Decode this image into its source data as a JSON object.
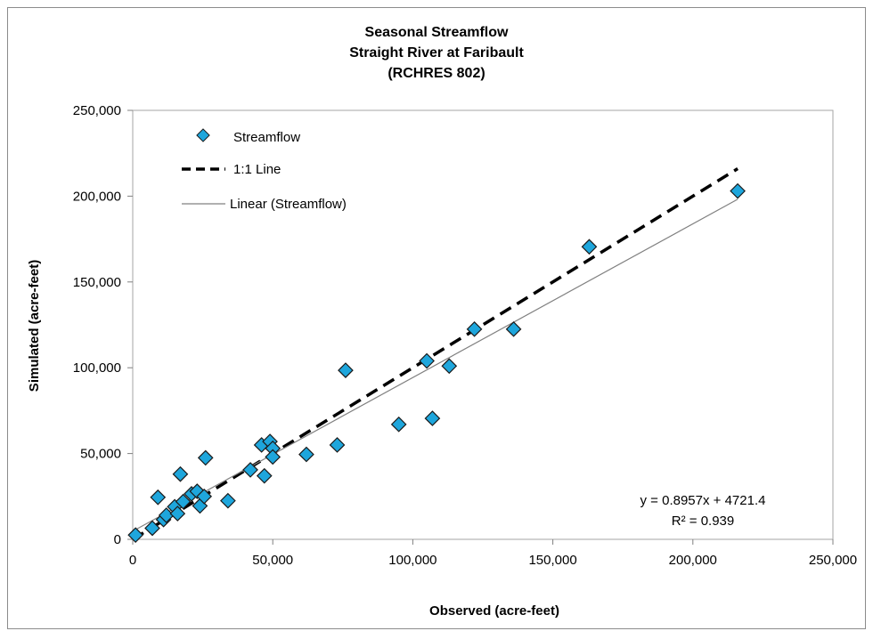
{
  "chart_data": {
    "type": "scatter",
    "title": [
      "Seasonal Streamflow",
      "Straight River at Faribault",
      "(RCHRES 802)"
    ],
    "xlabel": "Observed (acre-feet)",
    "ylabel": "Simulated (acre-feet)",
    "xlim": [
      0,
      250000
    ],
    "ylim": [
      0,
      250000
    ],
    "xticks": [
      0,
      50000,
      100000,
      150000,
      200000,
      250000
    ],
    "yticks": [
      0,
      50000,
      100000,
      150000,
      200000,
      250000
    ],
    "xtick_labels": [
      "0",
      "50,000",
      "100,000",
      "150,000",
      "200,000",
      "250,000"
    ],
    "ytick_labels": [
      "0",
      "50,000",
      "100,000",
      "150,000",
      "200,000",
      "250,000"
    ],
    "grid": false,
    "legend_position": "top-left",
    "series": [
      {
        "name": "Streamflow",
        "kind": "points",
        "marker": "diamond",
        "color": "#1ea6dc",
        "points": [
          [
            1000,
            2500
          ],
          [
            7000,
            6500
          ],
          [
            9000,
            24500
          ],
          [
            11000,
            11500
          ],
          [
            12000,
            14000
          ],
          [
            15000,
            19000
          ],
          [
            16000,
            15000
          ],
          [
            17000,
            38000
          ],
          [
            18000,
            22000
          ],
          [
            21000,
            26500
          ],
          [
            23000,
            28000
          ],
          [
            24000,
            19500
          ],
          [
            25500,
            25000
          ],
          [
            26000,
            47500
          ],
          [
            34000,
            22500
          ],
          [
            42000,
            40500
          ],
          [
            46000,
            55000
          ],
          [
            47000,
            37000
          ],
          [
            49000,
            57000
          ],
          [
            50000,
            53000
          ],
          [
            50000,
            48000
          ],
          [
            62000,
            49500
          ],
          [
            73000,
            55000
          ],
          [
            76000,
            98500
          ],
          [
            95000,
            67000
          ],
          [
            105000,
            104000
          ],
          [
            107000,
            70500
          ],
          [
            113000,
            101000
          ],
          [
            122000,
            122500
          ],
          [
            136000,
            122500
          ],
          [
            163000,
            170500
          ],
          [
            216000,
            203000
          ]
        ]
      },
      {
        "name": "1:1 Line",
        "kind": "line",
        "style": "dashed",
        "color": "#000000",
        "x": [
          0,
          216000
        ],
        "y": [
          0,
          216000
        ]
      },
      {
        "name": "Linear (Streamflow)",
        "kind": "line",
        "style": "solid",
        "color": "#808080",
        "x": [
          0,
          216000
        ],
        "y": [
          4721.4,
          198192.6
        ]
      }
    ],
    "annotations": [
      "y = 0.8957x + 4721.4",
      "R² = 0.939"
    ]
  }
}
